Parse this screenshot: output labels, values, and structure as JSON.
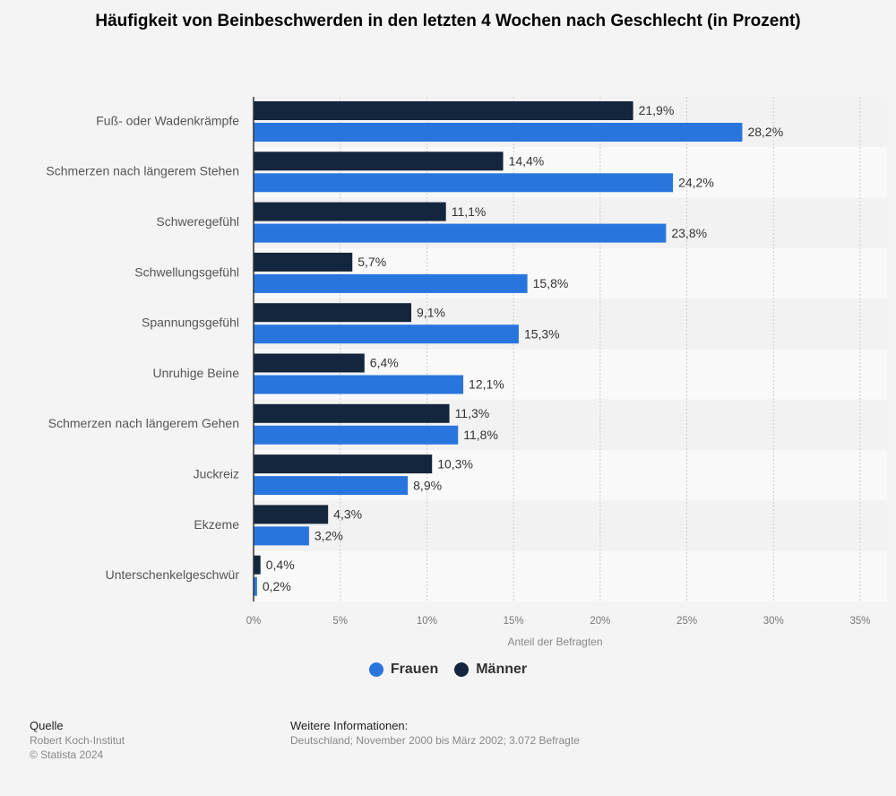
{
  "chart_data": {
    "type": "bar",
    "orientation": "horizontal",
    "title": "Häufigkeit von Beinbeschwerden in den letzten 4 Wochen nach Geschlecht (in Prozent)",
    "xlabel": "Anteil der Befragten",
    "ylabel": "",
    "xlim": [
      0,
      35
    ],
    "x_ticks": [
      0,
      5,
      10,
      15,
      20,
      25,
      30,
      35
    ],
    "x_tick_labels": [
      "0%",
      "5%",
      "10%",
      "15%",
      "20%",
      "25%",
      "30%",
      "35%"
    ],
    "grid": true,
    "legend_position": "bottom-center",
    "categories": [
      "Fuß- oder Wadenkrämpfe",
      "Schmerzen nach längerem Stehen",
      "Schweregefühl",
      "Schwellungsgefühl",
      "Spannungsgefühl",
      "Unruhige Beine",
      "Schmerzen nach längerem Gehen",
      "Juckreiz",
      "Ekzeme",
      "Unterschenkelgeschwür"
    ],
    "series": [
      {
        "name": "Männer",
        "color": "#14263d",
        "values": [
          21.9,
          14.4,
          11.1,
          5.7,
          9.1,
          6.4,
          11.3,
          10.3,
          4.3,
          0.4
        ],
        "labels": [
          "21,9%",
          "14,4%",
          "11,1%",
          "5,7%",
          "9,1%",
          "6,4%",
          "11,3%",
          "10,3%",
          "4,3%",
          "0,4%"
        ]
      },
      {
        "name": "Frauen",
        "color": "#2876dd",
        "values": [
          28.2,
          24.2,
          23.8,
          15.8,
          15.3,
          12.1,
          11.8,
          8.9,
          3.2,
          0.2
        ],
        "labels": [
          "28,2%",
          "24,2%",
          "23,8%",
          "15,8%",
          "15,3%",
          "12,1%",
          "11,8%",
          "8,9%",
          "3,2%",
          "0,2%"
        ]
      }
    ],
    "legend": [
      {
        "name": "Frauen",
        "color": "#2876dd"
      },
      {
        "name": "Männer",
        "color": "#14263d"
      }
    ]
  },
  "footer": {
    "source_heading": "Quelle",
    "source_name": "Robert Koch-Institut",
    "copyright": "© Statista 2024",
    "info_heading": "Weitere Informationen:",
    "info_text": "Deutschland; November 2000 bis März 2002; 3.072 Befragte"
  }
}
